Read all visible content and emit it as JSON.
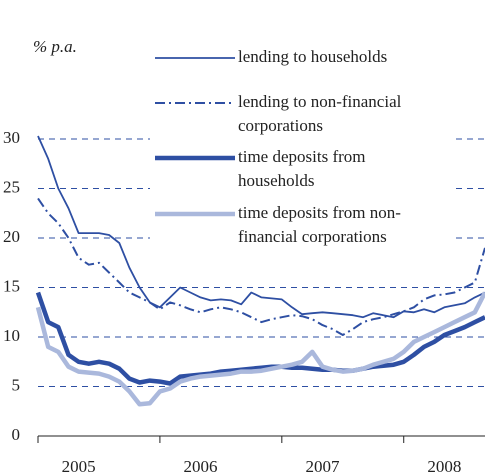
{
  "chart_data": {
    "type": "line",
    "y_axis_label": "% p.a.",
    "categories": [
      null,
      null,
      null,
      null,
      "2005",
      null,
      null,
      null,
      null,
      null,
      null,
      null,
      null,
      null,
      null,
      null,
      "2006",
      null,
      null,
      null,
      null,
      null,
      null,
      null,
      null,
      null,
      null,
      null,
      "2007",
      null,
      null,
      null,
      null,
      null,
      null,
      null,
      null,
      null,
      null,
      null,
      "2008",
      null,
      null,
      null,
      null
    ],
    "ylim": [
      0,
      40
    ],
    "yticks": [
      0,
      5,
      10,
      15,
      20,
      25,
      30
    ],
    "grid": true,
    "legend": "top-right",
    "series": [
      {
        "name": "lending to households",
        "color": "#2e4fa3",
        "style": "solid",
        "values": [
          30.3,
          28,
          25,
          23,
          20.5,
          20.5,
          20.5,
          20.3,
          19.5,
          17,
          15,
          13.5,
          13,
          14,
          15,
          14.5,
          14,
          13.7,
          13.8,
          13.7,
          13.3,
          14.5,
          14,
          13.9,
          13.8,
          13,
          12.3,
          12.4,
          12.5,
          12.4,
          12.3,
          12.2,
          12,
          12.4,
          12.2,
          12,
          12.6,
          12.5,
          12.8,
          12.5,
          13,
          13.2,
          13.4,
          14,
          14.5
        ]
      },
      {
        "name": "lending to non-financial corporations",
        "color": "#2e4fa3",
        "style": "dashdot",
        "values": [
          24,
          22.5,
          21.5,
          20,
          18,
          17.3,
          17.5,
          16.5,
          15.5,
          14.5,
          14,
          13.5,
          12.8,
          13.5,
          13.2,
          12.8,
          12.5,
          12.8,
          13,
          12.8,
          12.5,
          12,
          11.5,
          11.8,
          12,
          12.2,
          12.1,
          11.8,
          11.2,
          10.8,
          10.2,
          10.8,
          11.5,
          11.8,
          12,
          12.3,
          12.6,
          13,
          13.8,
          14.2,
          14.3,
          14.5,
          15,
          15.5,
          19
        ]
      },
      {
        "name": "time deposits from households",
        "color": "#2e4fa3",
        "style": "thick",
        "values": [
          14.5,
          11.5,
          11,
          8.2,
          7.5,
          7.3,
          7.5,
          7.3,
          6.8,
          5.8,
          5.4,
          5.6,
          5.5,
          5.3,
          6,
          6.1,
          6.2,
          6.3,
          6.5,
          6.6,
          6.7,
          6.8,
          6.9,
          7,
          7,
          6.9,
          6.9,
          6.8,
          6.7,
          6.7,
          6.6,
          6.6,
          6.8,
          7,
          7.1,
          7.2,
          7.5,
          8.2,
          9,
          9.5,
          10.2,
          10.6,
          11,
          11.5,
          12
        ]
      },
      {
        "name": "time deposits from non-financial corporations",
        "color": "#aab8dc",
        "style": "thick",
        "values": [
          13,
          9,
          8.5,
          7,
          6.5,
          6.4,
          6.3,
          6,
          5.5,
          4.5,
          3.2,
          3.3,
          4.5,
          4.8,
          5.5,
          5.8,
          6,
          6.1,
          6.2,
          6.3,
          6.5,
          6.5,
          6.6,
          6.8,
          7,
          7.2,
          7.5,
          8.5,
          7,
          6.7,
          6.5,
          6.6,
          6.8,
          7.2,
          7.5,
          7.8,
          8.5,
          9.5,
          10,
          10.5,
          11,
          11.5,
          12,
          12.5,
          14.5
        ]
      }
    ]
  }
}
